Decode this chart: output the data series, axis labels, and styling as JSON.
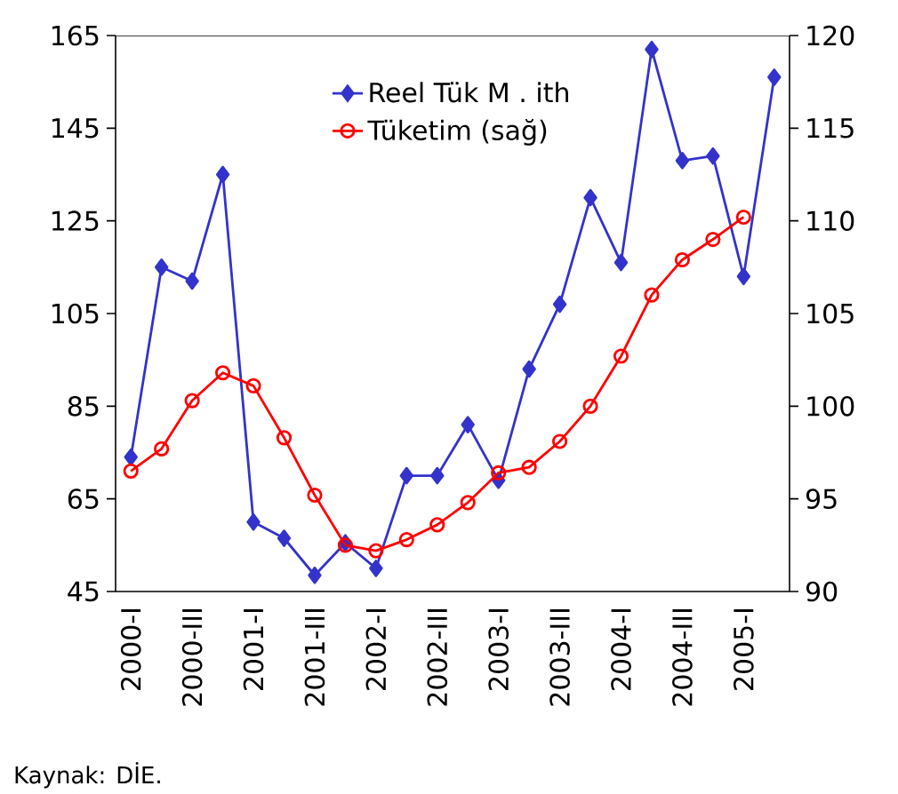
{
  "chart_data": {
    "type": "line",
    "categories": [
      "2000-I",
      null,
      "2000-III",
      null,
      "2001-I",
      null,
      "2001-III",
      null,
      "2002-I",
      null,
      "2002-III",
      null,
      "2003-I",
      null,
      "2003-III",
      null,
      "2004-I",
      null,
      "2004-III",
      null,
      "2005-I",
      null
    ],
    "series": [
      {
        "name": "Reel Tük M . ith",
        "color": "#3333cc",
        "marker": "diamond",
        "values": [
          74,
          115,
          112,
          135,
          60,
          56.5,
          48.5,
          55.5,
          50,
          70,
          70,
          81,
          69,
          93,
          107,
          130,
          116,
          162,
          138,
          139,
          113,
          156
        ]
      },
      {
        "name": "Tüketim (sağ)",
        "color": "#ff0000",
        "marker": "circle",
        "axis": "y2",
        "values": [
          96.5,
          97.7,
          100.3,
          101.8,
          101.1,
          98.3,
          95.2,
          92.5,
          92.2,
          92.8,
          93.6,
          94.8,
          96.4,
          96.7,
          98.1,
          100.0,
          102.7,
          106.0,
          107.9,
          109.0,
          110.2,
          null
        ]
      }
    ],
    "ylim": [
      45,
      165
    ],
    "yticks": [
      45,
      65,
      85,
      105,
      125,
      145,
      165
    ],
    "y2lim": [
      90,
      120
    ],
    "y2ticks": [
      90,
      95,
      100,
      105,
      110,
      115,
      120
    ],
    "legend": "top",
    "grid": false,
    "annotations": [
      "Kaynak: DİE."
    ]
  }
}
